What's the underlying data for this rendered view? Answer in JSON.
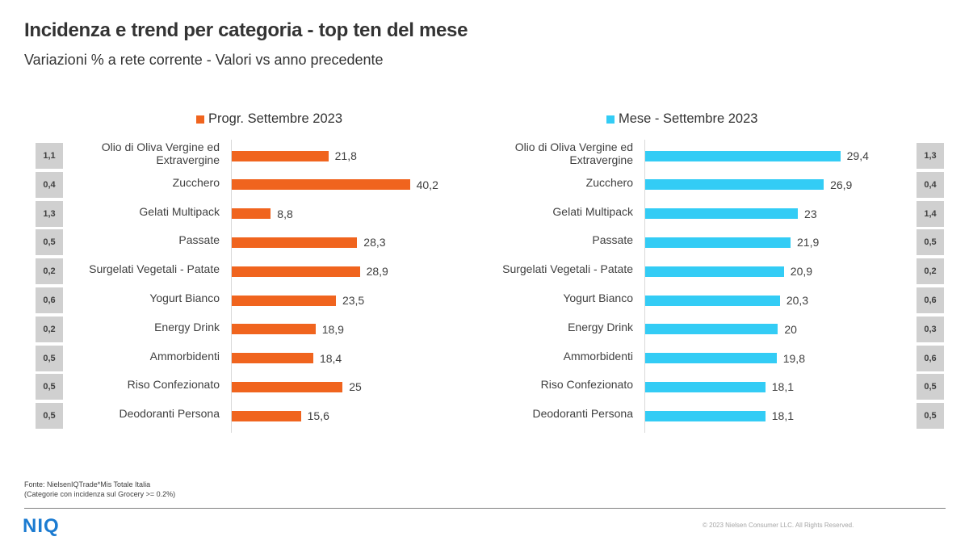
{
  "header": {
    "title": "Incidenza e trend per categoria - top ten del mese",
    "subtitle": "Variazioni  % a rete corrente - Valori vs anno precedente"
  },
  "chart_data": [
    {
      "type": "bar",
      "orientation": "horizontal",
      "categories": [
        "Olio di Oliva Vergine ed Extravergine",
        "Zucchero",
        "Gelati Multipack",
        "Passate",
        "Surgelati Vegetali - Patate",
        "Yogurt Bianco",
        "Energy Drink",
        "Ammorbidenti",
        "Riso Confezionato",
        "Deodoranti Persona"
      ],
      "category_lines": [
        [
          "Olio di Oliva Vergine ed",
          "Extravergine"
        ],
        [
          "Zucchero"
        ],
        [
          "Gelati Multipack"
        ],
        [
          "Passate"
        ],
        [
          "Surgelati Vegetali - Patate"
        ],
        [
          "Yogurt Bianco"
        ],
        [
          "Energy Drink"
        ],
        [
          "Ammorbidenti"
        ],
        [
          "Riso Confezionato"
        ],
        [
          "Deodoranti Persona"
        ]
      ],
      "series": [
        {
          "name": "Progr. Settembre 2023",
          "values": [
            21.8,
            40.2,
            8.8,
            28.3,
            28.9,
            23.5,
            18.9,
            18.4,
            25,
            15.6
          ],
          "color": "#f0641e"
        }
      ],
      "value_labels": [
        "21,8",
        "40,2",
        "8,8",
        "28,3",
        "28,9",
        "23,5",
        "18,9",
        "18,4",
        "25",
        "15,6"
      ],
      "incidenza_labels": [
        "1,1",
        "0,4",
        "1,3",
        "0,5",
        "0,2",
        "0,6",
        "0,2",
        "0,5",
        "0,5",
        "0,5"
      ],
      "incidenza_side": "left",
      "xlim": [
        0,
        41
      ],
      "legend_position": "top"
    },
    {
      "type": "bar",
      "orientation": "horizontal",
      "categories": [
        "Olio di Oliva Vergine ed Extravergine",
        "Zucchero",
        "Gelati Multipack",
        "Passate",
        "Surgelati Vegetali - Patate",
        "Yogurt Bianco",
        "Energy Drink",
        "Ammorbidenti",
        "Riso Confezionato",
        "Deodoranti Persona"
      ],
      "category_lines": [
        [
          "Olio di Oliva Vergine ed",
          "Extravergine"
        ],
        [
          "Zucchero"
        ],
        [
          "Gelati Multipack"
        ],
        [
          "Passate"
        ],
        [
          "Surgelati Vegetali - Patate"
        ],
        [
          "Yogurt Bianco"
        ],
        [
          "Energy Drink"
        ],
        [
          "Ammorbidenti"
        ],
        [
          "Riso Confezionato"
        ],
        [
          "Deodoranti Persona"
        ]
      ],
      "series": [
        {
          "name": "Mese - Settembre 2023",
          "values": [
            29.4,
            26.9,
            23,
            21.9,
            20.9,
            20.3,
            20,
            19.8,
            18.1,
            18.1
          ],
          "color": "#33ccf5"
        }
      ],
      "value_labels": [
        "29,4",
        "26,9",
        "23",
        "21,9",
        "20,9",
        "20,3",
        "20",
        "19,8",
        "18,1",
        "18,1"
      ],
      "incidenza_labels": [
        "1,3",
        "0,4",
        "1,4",
        "0,5",
        "0,2",
        "0,6",
        "0,3",
        "0,6",
        "0,5",
        "0,5"
      ],
      "incidenza_side": "right",
      "xlim": [
        0,
        41
      ],
      "legend_position": "top"
    }
  ],
  "footer": {
    "source_line1": "Fonte: NielsenIQTrade*Mis Totale Italia",
    "source_line2": "(Categorie con incidenza sul Grocery >= 0.2%)",
    "logo": "NIQ",
    "copyright": "© 2023 Nielsen Consumer LLC. All Rights Reserved."
  }
}
